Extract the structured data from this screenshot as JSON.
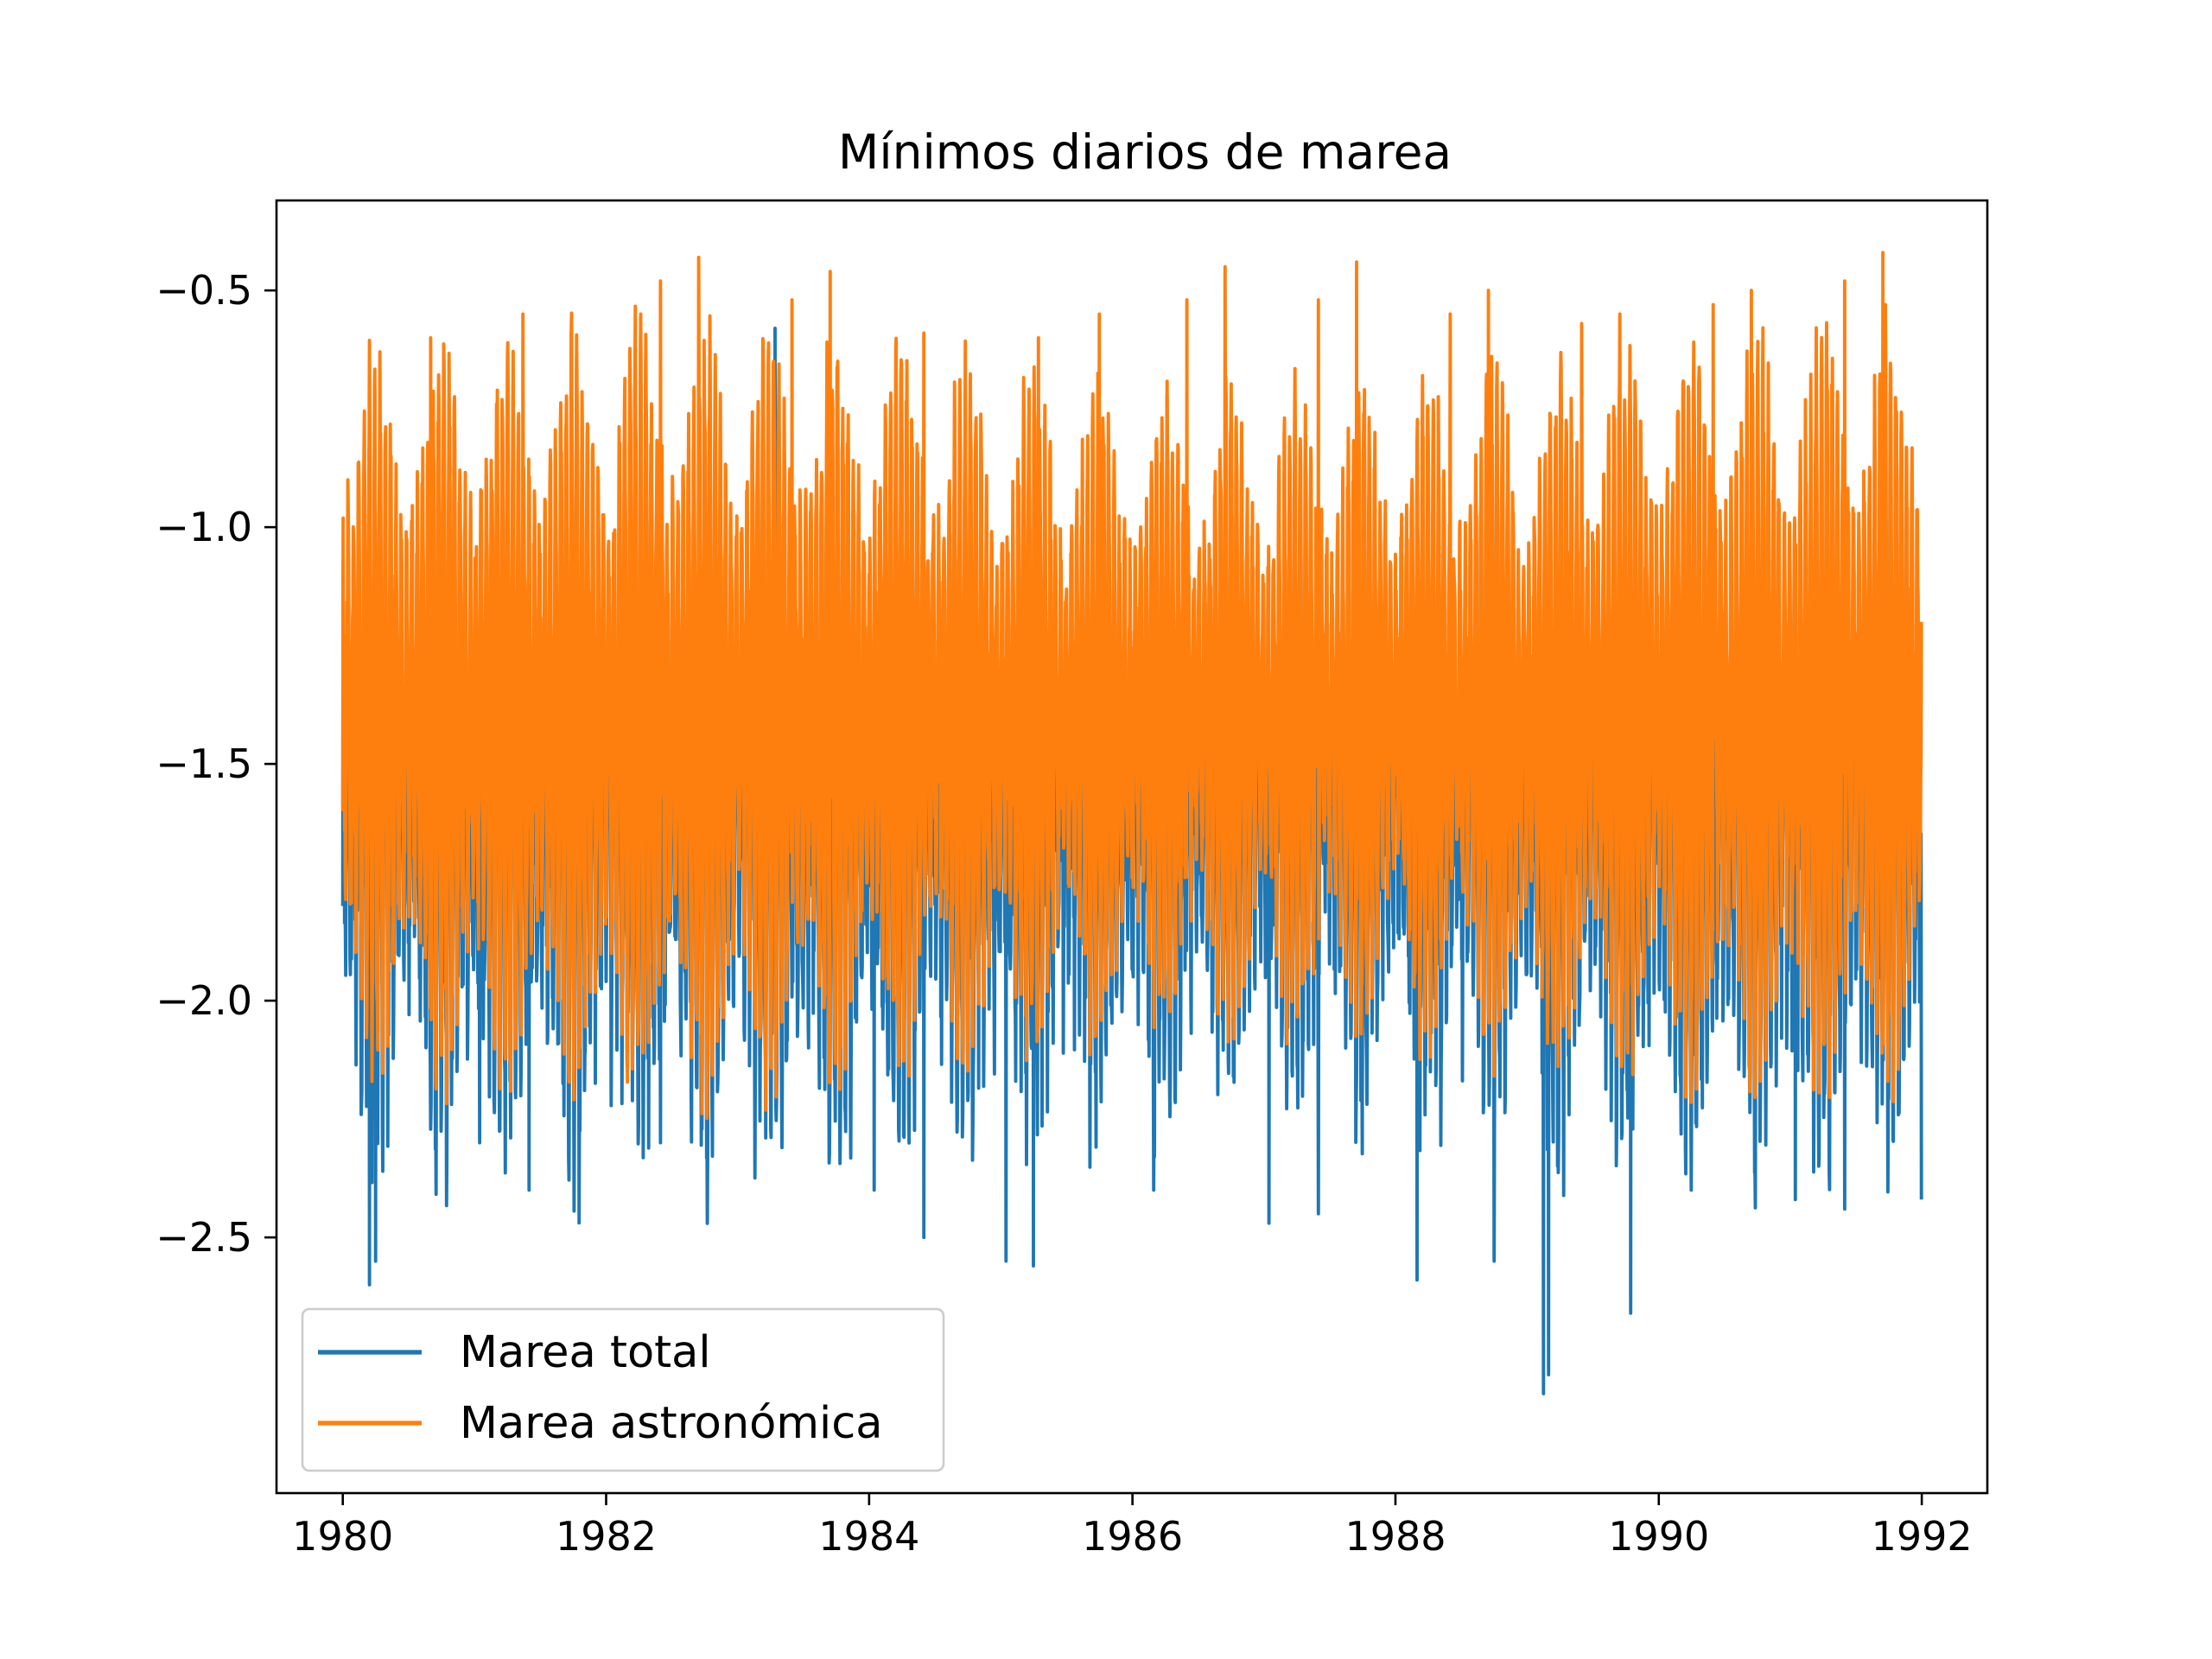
{
  "chart_data": {
    "type": "line",
    "title": "Mínimos diarios de marea",
    "xlabel": "",
    "ylabel": "",
    "x_range": [
      "1979-07-01",
      "1992-07-01"
    ],
    "ylim": [
      -3.04,
      -0.31
    ],
    "x_ticks": [
      {
        "date": "1980-01-01",
        "label": "1980"
      },
      {
        "date": "1982-01-01",
        "label": "1982"
      },
      {
        "date": "1984-01-01",
        "label": "1984"
      },
      {
        "date": "1986-01-01",
        "label": "1986"
      },
      {
        "date": "1988-01-01",
        "label": "1988"
      },
      {
        "date": "1990-01-01",
        "label": "1990"
      },
      {
        "date": "1992-01-01",
        "label": "1992"
      }
    ],
    "y_ticks": [
      {
        "value": -0.5,
        "label": "−0.5"
      },
      {
        "value": -1.0,
        "label": "−1.0"
      },
      {
        "value": -1.5,
        "label": "−1.5"
      },
      {
        "value": -2.0,
        "label": "−2.0"
      },
      {
        "value": -2.5,
        "label": "−2.5"
      }
    ],
    "grid": false,
    "legend_position": "lower-left",
    "series": [
      {
        "name": "Marea total",
        "color": "#1f77b4",
        "x": [
          "1980-01-01",
          "1980-03-15",
          "1980-04-01",
          "1981-01-15",
          "1981-06-01",
          "1982-03-01",
          "1982-06-01",
          "1983-04-15",
          "1984-01-15",
          "1984-06-01",
          "1985-01-15",
          "1985-04-01",
          "1986-03-01",
          "1987-01-15",
          "1987-06-01",
          "1988-03-01",
          "1988-10-01",
          "1989-02-15",
          "1989-03-01",
          "1989-10-15",
          "1990-04-01",
          "1991-01-15",
          "1991-06-01",
          "1991-12-31"
        ],
        "y": [
          -1.8,
          -2.6,
          -2.55,
          -2.3,
          -2.4,
          -2.15,
          -2.3,
          -0.58,
          -2.4,
          -2.5,
          -2.55,
          -2.56,
          -2.4,
          -2.47,
          -2.45,
          -2.59,
          -2.55,
          -2.83,
          -2.79,
          -2.66,
          -2.4,
          -2.42,
          -2.44,
          -2.42
        ]
      },
      {
        "name": "Marea astronómica",
        "color": "#ff7f0e",
        "x": [
          "1980-01-01",
          "1980-01-15",
          "1980-09-01",
          "1981-05-15",
          "1982-06-01",
          "1982-09-15",
          "1983-06-01",
          "1983-09-15",
          "1984-06-01",
          "1985-04-15",
          "1985-10-01",
          "1986-06-01",
          "1986-09-15",
          "1987-06-01",
          "1987-09-15",
          "1988-06-01",
          "1988-09-15",
          "1989-06-01",
          "1989-09-15",
          "1990-06-01",
          "1990-09-15",
          "1991-06-01",
          "1991-09-15",
          "1991-12-31"
        ],
        "y": [
          -1.6,
          -0.9,
          -0.6,
          -0.55,
          -0.48,
          -0.43,
          -0.52,
          -0.46,
          -0.59,
          -0.6,
          -0.55,
          -0.52,
          -0.45,
          -0.52,
          -0.44,
          -0.55,
          -0.5,
          -0.57,
          -0.55,
          -0.53,
          -0.5,
          -0.48,
          -0.42,
          -1.2
        ]
      }
    ]
  }
}
